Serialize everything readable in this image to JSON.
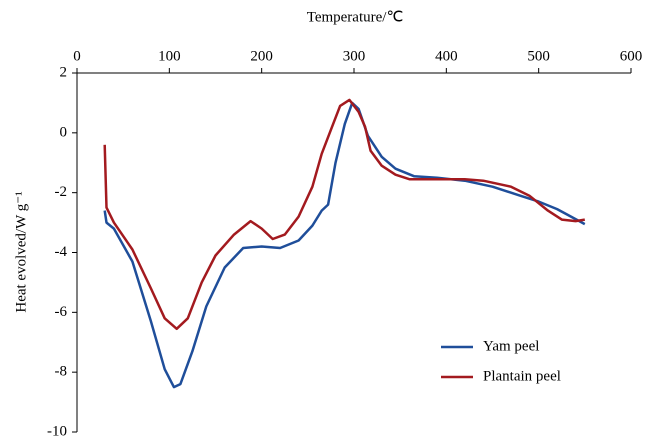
{
  "chart_data": {
    "type": "line",
    "x_label": "Temperature/℃",
    "y_label": "Heat evolved/W g⁻¹",
    "xlim": [
      0,
      600
    ],
    "xticks": [
      0,
      100,
      200,
      300,
      400,
      500,
      600
    ],
    "ylim": [
      -10,
      2
    ],
    "yticks": [
      -10,
      -8,
      -6,
      -4,
      -2,
      0,
      2
    ],
    "x_axis_position": "top",
    "legend": "lower right",
    "series": [
      {
        "name": "Yam peel",
        "color": "#1f4e9a",
        "x": [
          30,
          32,
          40,
          60,
          80,
          95,
          105,
          112,
          125,
          140,
          160,
          180,
          200,
          220,
          240,
          255,
          265,
          272,
          280,
          290,
          298,
          305,
          315,
          330,
          345,
          365,
          390,
          420,
          450,
          480,
          500,
          520,
          535,
          550
        ],
        "values": [
          -2.6,
          -3.0,
          -3.2,
          -4.3,
          -6.3,
          -7.9,
          -8.5,
          -8.4,
          -7.3,
          -5.8,
          -4.5,
          -3.85,
          -3.8,
          -3.85,
          -3.6,
          -3.1,
          -2.6,
          -2.4,
          -1.0,
          0.3,
          1.0,
          0.8,
          -0.1,
          -0.8,
          -1.2,
          -1.45,
          -1.5,
          -1.6,
          -1.8,
          -2.1,
          -2.3,
          -2.55,
          -2.8,
          -3.05
        ]
      },
      {
        "name": "Plantain peel",
        "color": "#a31a1f",
        "x": [
          30,
          32,
          40,
          60,
          80,
          95,
          108,
          120,
          135,
          150,
          170,
          188,
          200,
          212,
          225,
          240,
          255,
          265,
          275,
          285,
          295,
          305,
          312,
          318,
          330,
          345,
          360,
          390,
          420,
          440,
          470,
          490,
          510,
          525,
          540,
          550
        ],
        "values": [
          -0.4,
          -2.5,
          -3.0,
          -3.9,
          -5.2,
          -6.2,
          -6.55,
          -6.2,
          -5.0,
          -4.1,
          -3.4,
          -2.95,
          -3.2,
          -3.55,
          -3.4,
          -2.8,
          -1.8,
          -0.7,
          0.1,
          0.9,
          1.1,
          0.7,
          0.2,
          -0.6,
          -1.1,
          -1.4,
          -1.55,
          -1.55,
          -1.55,
          -1.6,
          -1.8,
          -2.1,
          -2.6,
          -2.9,
          -2.95,
          -2.9
        ]
      }
    ]
  }
}
